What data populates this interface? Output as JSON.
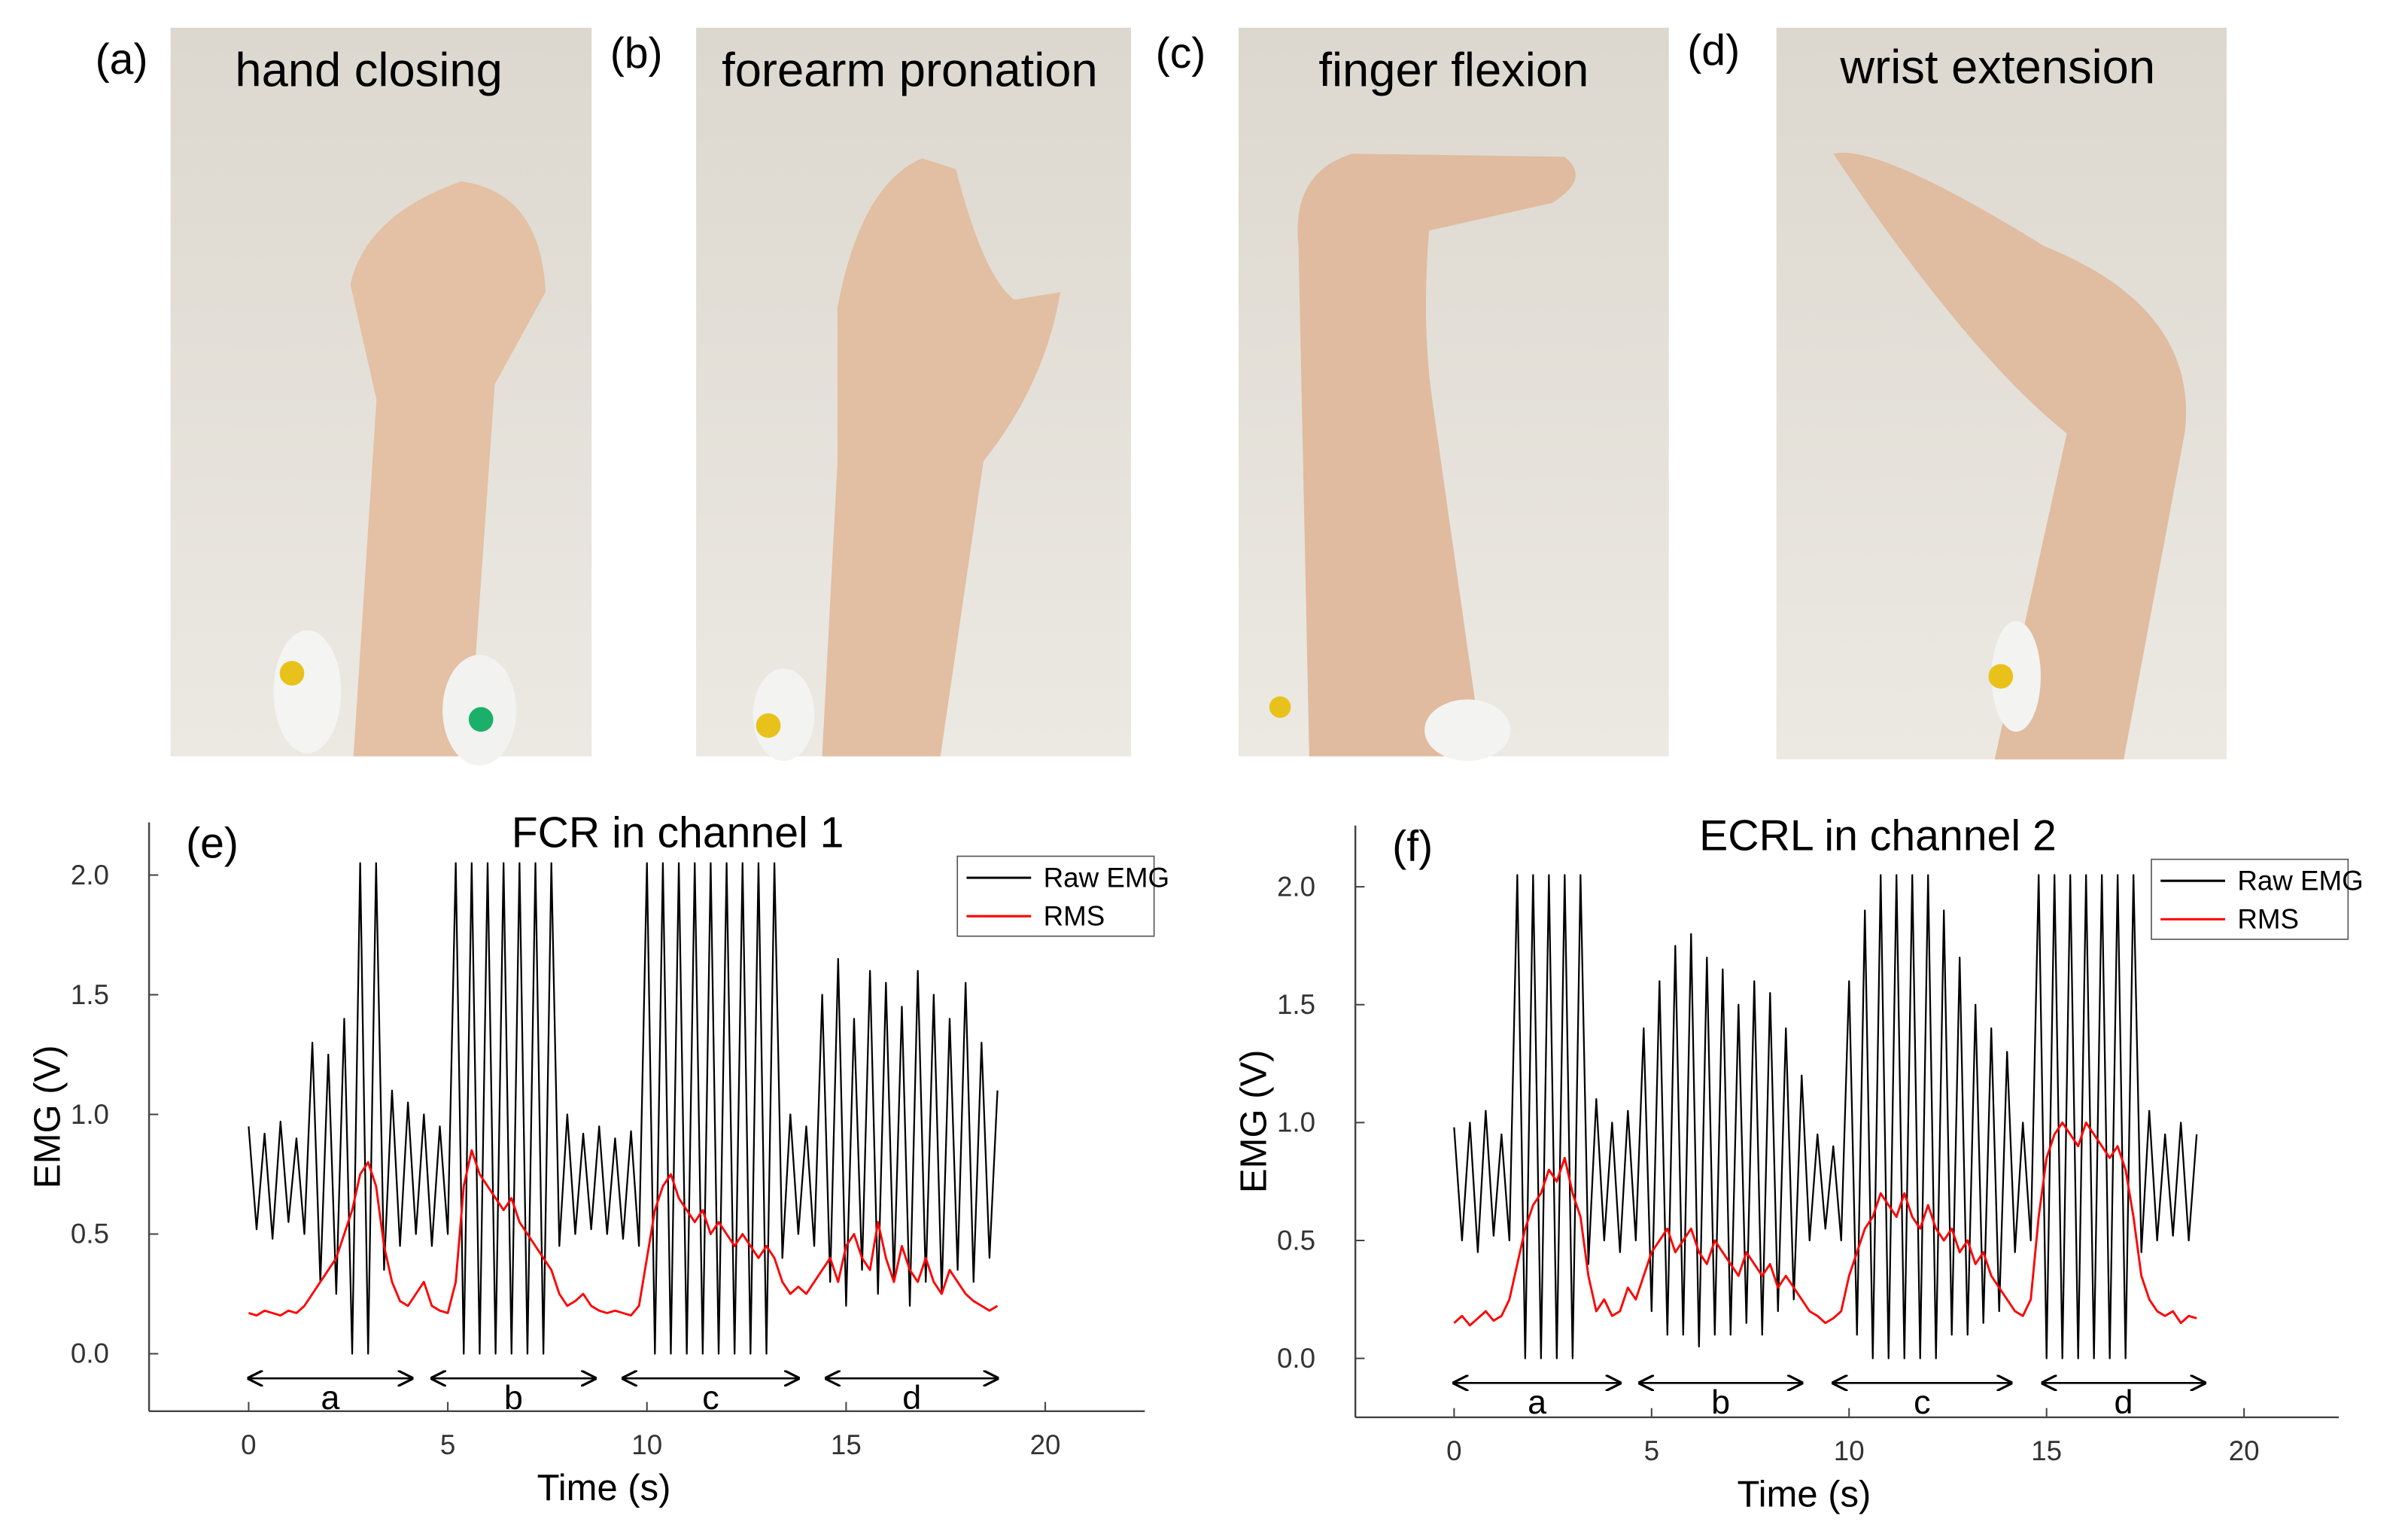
{
  "photos": [
    {
      "label": "(a)",
      "title": "hand closing"
    },
    {
      "label": "(b)",
      "title": "forearm pronation"
    },
    {
      "label": "(c)",
      "title": "finger flexion"
    },
    {
      "label": "(d)",
      "title": "wrist extension"
    }
  ],
  "chart_data": [
    {
      "type": "line",
      "panel_label": "(e)",
      "title": "FCR in channel 1",
      "x_label": "Time (s)",
      "y_label": "EMG (V)",
      "x": [
        0,
        0.2,
        0.4,
        0.6,
        0.8,
        1,
        1.2,
        1.4,
        1.6,
        1.8,
        2,
        2.2,
        2.4,
        2.6,
        2.8,
        3,
        3.2,
        3.4,
        3.6,
        3.8,
        4,
        4.2,
        4.4,
        4.6,
        4.8,
        5,
        5.2,
        5.4,
        5.6,
        5.8,
        6,
        6.2,
        6.4,
        6.6,
        6.8,
        7,
        7.2,
        7.4,
        7.6,
        7.8,
        8,
        8.2,
        8.4,
        8.6,
        8.8,
        9,
        9.2,
        9.4,
        9.6,
        9.8,
        10,
        10.2,
        10.4,
        10.6,
        10.8,
        11,
        11.2,
        11.4,
        11.6,
        11.8,
        12,
        12.2,
        12.4,
        12.6,
        12.8,
        13,
        13.2,
        13.4,
        13.6,
        13.8,
        14,
        14.2,
        14.4,
        14.6,
        14.8,
        15,
        15.2,
        15.4,
        15.6,
        15.8,
        16,
        16.2,
        16.4,
        16.6,
        16.8,
        17,
        17.2,
        17.4,
        17.6,
        17.8,
        18,
        18.2,
        18.4,
        18.6,
        18.8
      ],
      "series": [
        {
          "name": "Raw EMG",
          "color": "#000000",
          "values": [
            0.95,
            0.52,
            0.92,
            0.48,
            0.97,
            0.55,
            0.9,
            0.5,
            1.3,
            0.3,
            1.25,
            0.25,
            1.4,
            0,
            2.05,
            0,
            2.05,
            0.35,
            1.1,
            0.45,
            1.05,
            0.5,
            1.0,
            0.45,
            0.95,
            0.5,
            2.05,
            0,
            2.05,
            0,
            2.05,
            0,
            2.05,
            0,
            2.05,
            0,
            2.05,
            0,
            2.05,
            0.45,
            1.0,
            0.5,
            0.92,
            0.52,
            0.95,
            0.5,
            0.9,
            0.48,
            0.93,
            0.45,
            2.05,
            0,
            2.05,
            0,
            2.05,
            0,
            2.05,
            0,
            2.05,
            0,
            2.05,
            0,
            2.05,
            0,
            2.05,
            0,
            2.05,
            0.4,
            1.0,
            0.5,
            0.95,
            0.45,
            1.5,
            0.3,
            1.65,
            0.2,
            1.4,
            0.35,
            1.6,
            0.25,
            1.55,
            0.3,
            1.45,
            0.2,
            1.6,
            0.3,
            1.5,
            0.25,
            1.4,
            0.35,
            1.55,
            0.3,
            1.3,
            0.4,
            1.1
          ]
        },
        {
          "name": "RMS",
          "color": "#ff0000",
          "values": [
            0.17,
            0.16,
            0.18,
            0.17,
            0.16,
            0.18,
            0.17,
            0.2,
            0.25,
            0.3,
            0.35,
            0.4,
            0.5,
            0.6,
            0.75,
            0.8,
            0.7,
            0.45,
            0.3,
            0.22,
            0.2,
            0.25,
            0.3,
            0.2,
            0.18,
            0.17,
            0.3,
            0.7,
            0.85,
            0.75,
            0.7,
            0.65,
            0.6,
            0.65,
            0.55,
            0.5,
            0.45,
            0.4,
            0.35,
            0.25,
            0.2,
            0.22,
            0.25,
            0.2,
            0.18,
            0.17,
            0.18,
            0.17,
            0.16,
            0.2,
            0.4,
            0.6,
            0.7,
            0.75,
            0.65,
            0.6,
            0.55,
            0.6,
            0.5,
            0.55,
            0.5,
            0.45,
            0.5,
            0.45,
            0.4,
            0.45,
            0.4,
            0.3,
            0.25,
            0.28,
            0.25,
            0.3,
            0.35,
            0.4,
            0.3,
            0.45,
            0.5,
            0.4,
            0.35,
            0.55,
            0.4,
            0.3,
            0.45,
            0.35,
            0.3,
            0.4,
            0.3,
            0.25,
            0.35,
            0.3,
            0.25,
            0.22,
            0.2,
            0.18,
            0.2
          ]
        }
      ],
      "xlim": [
        -2.5,
        22.5
      ],
      "ylim": [
        -0.24,
        2.22
      ],
      "xticks": [
        0,
        5,
        10,
        15,
        20
      ],
      "yticks": [
        {
          "value": 0,
          "label": "0.0"
        },
        0.5,
        {
          "value": 1,
          "label": "1.0"
        },
        1.5,
        {
          "value": 2,
          "label": "2.0"
        }
      ],
      "legend": "upper right",
      "spans": [
        {
          "label": "a",
          "x0": 0,
          "x1": 4.1
        },
        {
          "label": "b",
          "x0": 4.6,
          "x1": 8.7
        },
        {
          "label": "c",
          "x0": 9.4,
          "x1": 13.8
        },
        {
          "label": "d",
          "x0": 14.5,
          "x1": 18.8
        }
      ]
    },
    {
      "type": "line",
      "panel_label": "(f)",
      "title": "ECRL in channel 2",
      "x_label": "Time (s)",
      "y_label": "EMG (V)",
      "x": [
        0,
        0.2,
        0.4,
        0.6,
        0.8,
        1,
        1.2,
        1.4,
        1.6,
        1.8,
        2,
        2.2,
        2.4,
        2.6,
        2.8,
        3,
        3.2,
        3.4,
        3.6,
        3.8,
        4,
        4.2,
        4.4,
        4.6,
        4.8,
        5,
        5.2,
        5.4,
        5.6,
        5.8,
        6,
        6.2,
        6.4,
        6.6,
        6.8,
        7,
        7.2,
        7.4,
        7.6,
        7.8,
        8,
        8.2,
        8.4,
        8.6,
        8.8,
        9,
        9.2,
        9.4,
        9.6,
        9.8,
        10,
        10.2,
        10.4,
        10.6,
        10.8,
        11,
        11.2,
        11.4,
        11.6,
        11.8,
        12,
        12.2,
        12.4,
        12.6,
        12.8,
        13,
        13.2,
        13.4,
        13.6,
        13.8,
        14,
        14.2,
        14.4,
        14.6,
        14.8,
        15,
        15.2,
        15.4,
        15.6,
        15.8,
        16,
        16.2,
        16.4,
        16.6,
        16.8,
        17,
        17.2,
        17.4,
        17.6,
        17.8,
        18,
        18.2,
        18.4,
        18.6,
        18.8
      ],
      "series": [
        {
          "name": "Raw EMG",
          "color": "#000000",
          "values": [
            0.98,
            0.5,
            1.0,
            0.45,
            1.05,
            0.52,
            0.95,
            0.5,
            2.05,
            0,
            2.05,
            0,
            2.05,
            0,
            2.05,
            0,
            2.05,
            0.4,
            1.1,
            0.5,
            1.0,
            0.45,
            1.05,
            0.5,
            1.4,
            0.2,
            1.6,
            0.1,
            1.75,
            0.1,
            1.8,
            0.05,
            1.7,
            0.1,
            1.65,
            0.1,
            1.5,
            0.15,
            1.6,
            0.1,
            1.55,
            0.2,
            1.4,
            0.25,
            1.2,
            0.5,
            0.95,
            0.55,
            0.9,
            0.5,
            1.6,
            0.1,
            1.9,
            0,
            2.05,
            0,
            2.05,
            0,
            2.05,
            0,
            2.05,
            0,
            1.9,
            0.1,
            1.7,
            0.1,
            1.5,
            0.15,
            1.4,
            0.2,
            1.3,
            0.45,
            1.0,
            0.5,
            2.05,
            0,
            2.05,
            0,
            2.05,
            0,
            2.05,
            0,
            2.05,
            0,
            2.05,
            0,
            2.05,
            0.45,
            1.05,
            0.5,
            0.95,
            0.52,
            1.0,
            0.5,
            0.95
          ]
        },
        {
          "name": "RMS",
          "color": "#ff0000",
          "values": [
            0.15,
            0.18,
            0.14,
            0.17,
            0.2,
            0.16,
            0.18,
            0.25,
            0.4,
            0.55,
            0.65,
            0.7,
            0.8,
            0.75,
            0.85,
            0.7,
            0.6,
            0.35,
            0.2,
            0.25,
            0.18,
            0.2,
            0.3,
            0.25,
            0.35,
            0.45,
            0.5,
            0.55,
            0.45,
            0.5,
            0.55,
            0.45,
            0.4,
            0.5,
            0.45,
            0.4,
            0.35,
            0.45,
            0.4,
            0.35,
            0.4,
            0.3,
            0.35,
            0.3,
            0.25,
            0.2,
            0.18,
            0.15,
            0.17,
            0.2,
            0.35,
            0.45,
            0.55,
            0.6,
            0.7,
            0.65,
            0.6,
            0.7,
            0.6,
            0.55,
            0.65,
            0.55,
            0.5,
            0.55,
            0.45,
            0.5,
            0.4,
            0.45,
            0.35,
            0.3,
            0.25,
            0.2,
            0.18,
            0.25,
            0.6,
            0.85,
            0.95,
            1.0,
            0.95,
            0.9,
            1.0,
            0.95,
            0.9,
            0.85,
            0.9,
            0.8,
            0.6,
            0.35,
            0.25,
            0.2,
            0.18,
            0.2,
            0.15,
            0.18,
            0.17
          ]
        }
      ],
      "xlim": [
        -2.5,
        22.4
      ],
      "ylim": [
        -0.25,
        2.26
      ],
      "xticks": [
        0,
        5,
        10,
        15,
        20
      ],
      "yticks": [
        {
          "value": 0,
          "label": "0.0"
        },
        0.5,
        {
          "value": 1,
          "label": "1.0"
        },
        1.5,
        {
          "value": 2,
          "label": "2.0"
        }
      ],
      "legend": "upper right",
      "spans": [
        {
          "label": "a",
          "x0": 0,
          "x1": 4.2
        },
        {
          "label": "b",
          "x0": 4.7,
          "x1": 8.8
        },
        {
          "label": "c",
          "x0": 9.6,
          "x1": 14.1
        },
        {
          "label": "d",
          "x0": 14.9,
          "x1": 19.0
        }
      ]
    }
  ]
}
